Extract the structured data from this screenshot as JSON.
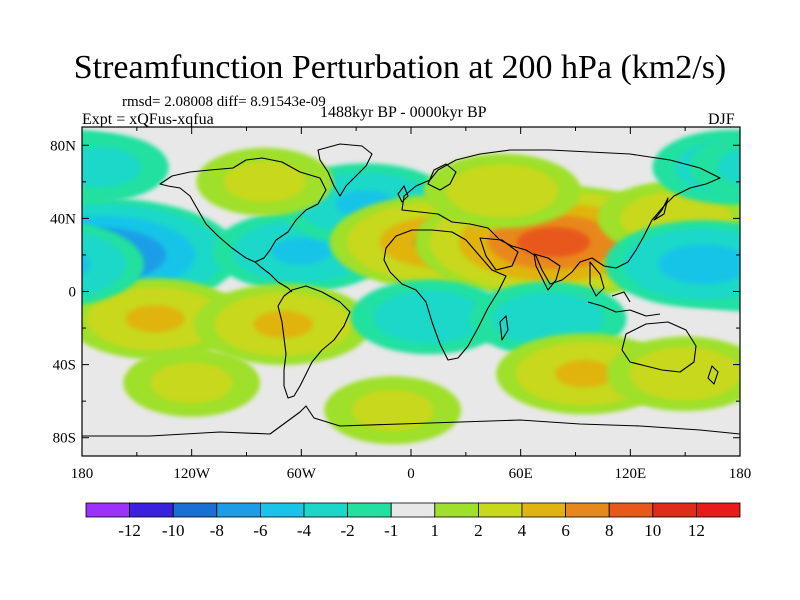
{
  "chart_data": {
    "type": "heatmap",
    "title": "Streamfunction Perturbation at 200 hPa (km2/s)",
    "stats_text": "rmsd= 2.08008 diff= 8.91543e-09",
    "experiment_text": "Expt = xQFus-xqfua",
    "period_text": "1488kyr BP - 0000kyr BP",
    "season_text": "DJF",
    "x_ticks": [
      {
        "lon": -180,
        "label": "180"
      },
      {
        "lon": -120,
        "label": "120W"
      },
      {
        "lon": -60,
        "label": "60W"
      },
      {
        "lon": 0,
        "label": "0"
      },
      {
        "lon": 60,
        "label": "60E"
      },
      {
        "lon": 120,
        "label": "120E"
      },
      {
        "lon": 180,
        "label": "180"
      }
    ],
    "y_ticks": [
      {
        "lat": 80,
        "label": "80N"
      },
      {
        "lat": 40,
        "label": "40N"
      },
      {
        "lat": 0,
        "label": "0"
      },
      {
        "lat": -40,
        "label": "40S"
      },
      {
        "lat": -80,
        "label": "80S"
      }
    ],
    "xlim": [
      -180,
      180
    ],
    "ylim": [
      -90,
      90
    ],
    "colorbar": {
      "levels": [
        "-12",
        "-10",
        "-8",
        "-6",
        "-4",
        "-2",
        "-1",
        "1",
        "2",
        "4",
        "6",
        "8",
        "10",
        "12"
      ],
      "colors": [
        "#9b30ff",
        "#3a20e0",
        "#1a6fd6",
        "#1b9de8",
        "#18c4e8",
        "#1ad8c8",
        "#22e0a0",
        "#e8e8e8",
        "#9ee02a",
        "#c8d81a",
        "#e0b410",
        "#e8881a",
        "#e8581a",
        "#e02a1a",
        "#e81a1a"
      ]
    },
    "anomaly_centers": [
      {
        "lon": -170,
        "lat": 20,
        "value": -9
      },
      {
        "lon": -60,
        "lat": 22,
        "value": -4
      },
      {
        "lon": -140,
        "lat": -15,
        "value": 4
      },
      {
        "lon": -70,
        "lat": -18,
        "value": 4
      },
      {
        "lon": -25,
        "lat": 48,
        "value": -4
      },
      {
        "lon": 15,
        "lat": 27,
        "value": 6
      },
      {
        "lon": 78,
        "lat": 27,
        "value": 9
      },
      {
        "lon": 50,
        "lat": 55,
        "value": 3
      },
      {
        "lon": 145,
        "lat": 40,
        "value": 3
      },
      {
        "lon": -80,
        "lat": 60,
        "value": 2
      },
      {
        "lon": 160,
        "lat": 15,
        "value": -5
      },
      {
        "lon": 10,
        "lat": -14,
        "value": -3
      },
      {
        "lon": 75,
        "lat": -15,
        "value": -3
      },
      {
        "lon": 95,
        "lat": -45,
        "value": 4
      },
      {
        "lon": 150,
        "lat": -45,
        "value": 3
      },
      {
        "lon": 175,
        "lat": 68,
        "value": -3
      },
      {
        "lon": -170,
        "lat": 68,
        "value": -2
      },
      {
        "lon": -10,
        "lat": -65,
        "value": 2
      },
      {
        "lon": -120,
        "lat": -50,
        "value": 2
      }
    ]
  }
}
